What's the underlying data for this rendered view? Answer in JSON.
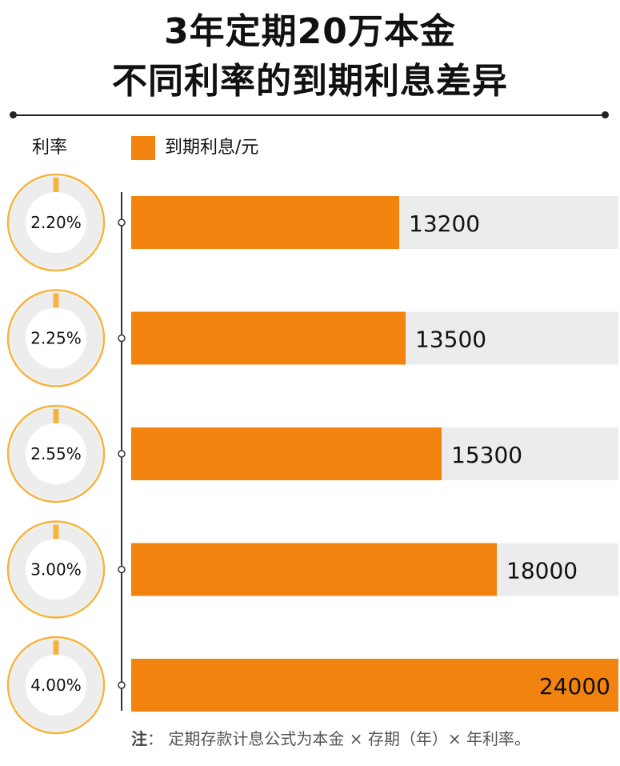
{
  "title_line1": "3年定期20万本金",
  "title_line2": "不同利率的到期利息差异",
  "rate_header": "利率",
  "footnote_prefix": "注",
  "footnote_text": "：  定期存款计息公式为本金 × 存期（年）× 年利率。",
  "colors": {
    "bar": "#f2830f",
    "track": "#ececec",
    "ring": "#f5b33f",
    "ring_fill": "#ededed",
    "tick": "#f5b33f"
  },
  "chart_data": {
    "type": "bar",
    "orientation": "horizontal",
    "categories": [
      "2.20%",
      "2.25%",
      "2.55%",
      "3.00%",
      "4.00%"
    ],
    "series": [
      {
        "name": "到期利息/元",
        "values": [
          13200,
          13500,
          15300,
          18000,
          24000
        ]
      }
    ],
    "value_labels": [
      "13200",
      "13500",
      "15300",
      "18000",
      "24000"
    ],
    "xlim": [
      0,
      24000
    ],
    "legend": "top-left",
    "grid": false
  }
}
